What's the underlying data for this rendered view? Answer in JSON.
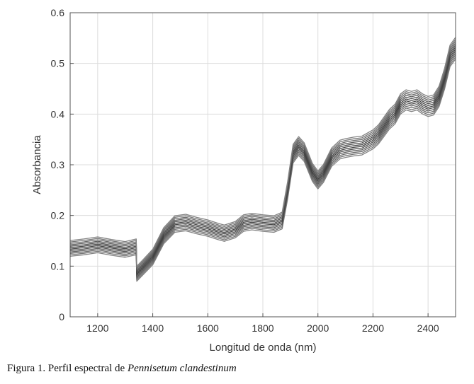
{
  "chart_data": {
    "type": "line",
    "title": "",
    "xlabel": "Longitud de onda (nm)",
    "ylabel": "Absorbancia",
    "xlim": [
      1100,
      2500
    ],
    "ylim": [
      0,
      0.6
    ],
    "grid": true,
    "x_ticks": [
      1200,
      1400,
      1600,
      1800,
      2000,
      2200,
      2400
    ],
    "y_ticks": [
      0,
      0.1,
      0.2,
      0.3,
      0.4,
      0.5,
      0.6
    ],
    "x_tick_labels": [
      "1200",
      "1400",
      "1600",
      "1800",
      "2000",
      "2200",
      "2400"
    ],
    "y_tick_labels": [
      "0",
      "0.1",
      "0.2",
      "0.3",
      "0.4",
      "0.5",
      "0.6"
    ],
    "line_color": "#404040",
    "series": [
      {
        "x": [
          1100,
          1150,
          1200,
          1250,
          1300,
          1340,
          1342,
          1360,
          1400,
          1440,
          1480,
          1520,
          1560,
          1600,
          1640,
          1660,
          1700,
          1730,
          1760,
          1800,
          1840,
          1870,
          1890,
          1910,
          1930,
          1950,
          1980,
          2000,
          2020,
          2050,
          2080,
          2100,
          2130,
          2160,
          2200,
          2220,
          2240,
          2260,
          2280,
          2300,
          2320,
          2340,
          2360,
          2380,
          2400,
          2420,
          2440,
          2460,
          2480,
          2500
        ],
        "values": [
          0.135,
          0.138,
          0.142,
          0.137,
          0.133,
          0.138,
          0.085,
          0.095,
          0.118,
          0.16,
          0.183,
          0.186,
          0.18,
          0.175,
          0.168,
          0.165,
          0.172,
          0.185,
          0.188,
          0.185,
          0.183,
          0.19,
          0.25,
          0.322,
          0.337,
          0.325,
          0.285,
          0.27,
          0.283,
          0.315,
          0.33,
          0.333,
          0.336,
          0.338,
          0.35,
          0.36,
          0.375,
          0.39,
          0.4,
          0.42,
          0.428,
          0.425,
          0.428,
          0.42,
          0.415,
          0.418,
          0.435,
          0.47,
          0.515,
          0.53
        ]
      }
    ],
    "spread": 0.018,
    "n_curves": 12
  },
  "caption": {
    "prefix": "Figura 1. Perfil espectral de ",
    "species": "Pennisetum clandestinum"
  }
}
